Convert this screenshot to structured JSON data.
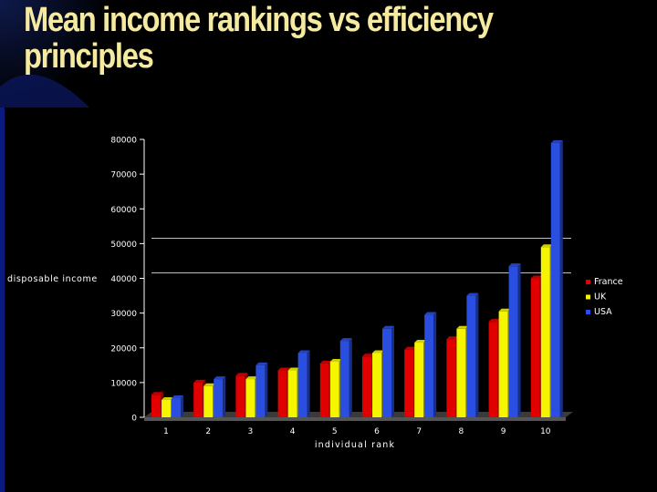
{
  "slide": {
    "title_line1": "Mean income rankings vs efficiency",
    "title_line2": "principles"
  },
  "colors": {
    "background": "#000000",
    "title": "#f5eaa0",
    "accent_blue": "#0a1a66",
    "France": "#e00000",
    "UK": "#f5f500",
    "USA": "#2a4fe0"
  },
  "chart_data": {
    "type": "bar",
    "xlabel": "individual rank",
    "ylabel": "disposable income",
    "categories": [
      "1",
      "2",
      "3",
      "4",
      "5",
      "6",
      "7",
      "8",
      "9",
      "10"
    ],
    "ylim": [
      0,
      80000
    ],
    "yticks": [
      "0",
      "10000",
      "20000",
      "30000",
      "40000",
      "50000",
      "60000",
      "70000",
      "80000"
    ],
    "series": [
      {
        "name": "France",
        "values": [
          6500,
          10000,
          12000,
          13500,
          15500,
          17500,
          19500,
          22500,
          27500,
          40000
        ]
      },
      {
        "name": "UK",
        "values": [
          5000,
          9000,
          11000,
          13500,
          16000,
          18500,
          21500,
          25500,
          30500,
          49000
        ]
      },
      {
        "name": "USA",
        "values": [
          5500,
          11000,
          15000,
          18500,
          22000,
          25500,
          29500,
          35000,
          43500,
          79000
        ]
      }
    ],
    "legend": "right",
    "grid": "partial"
  }
}
